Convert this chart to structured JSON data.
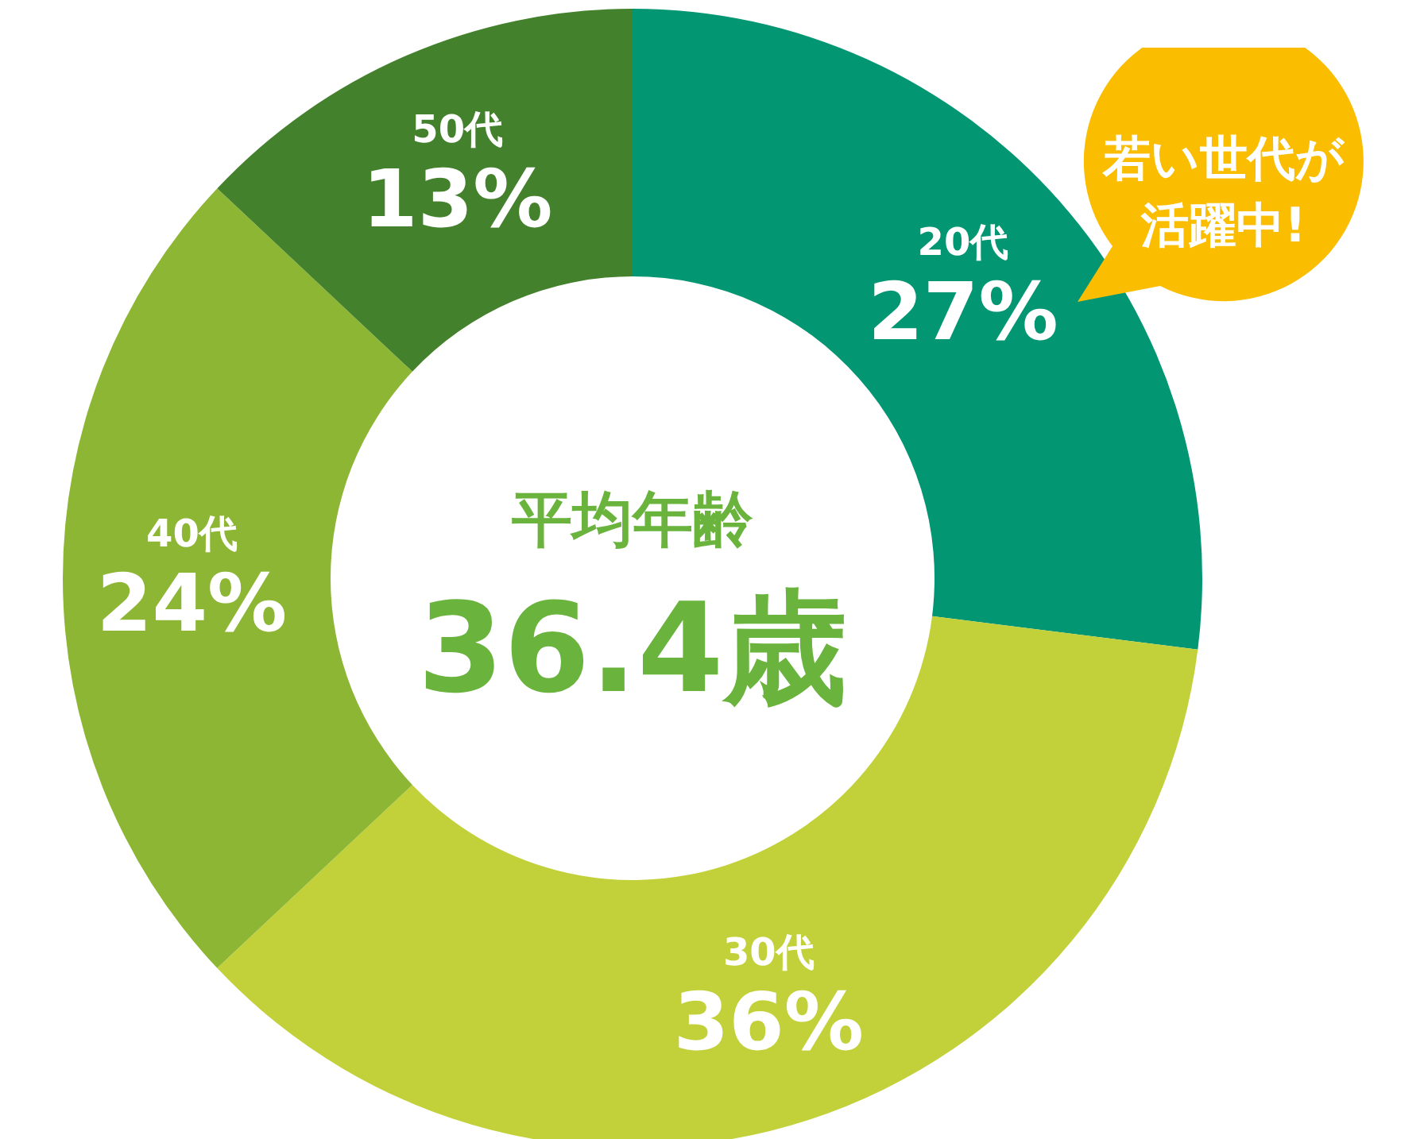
{
  "chart_data": {
    "type": "donut",
    "categories": [
      "20代",
      "30代",
      "40代",
      "50代"
    ],
    "values": [
      27,
      36,
      24,
      13
    ],
    "colors": [
      "#039673",
      "#c2d13a",
      "#8db634",
      "#44812c"
    ],
    "value_labels": [
      "27%",
      "36%",
      "24%",
      "13%"
    ],
    "annotations": [
      "平均年齢",
      "36.4歳",
      "若い世代が活躍中!"
    ]
  }
}
